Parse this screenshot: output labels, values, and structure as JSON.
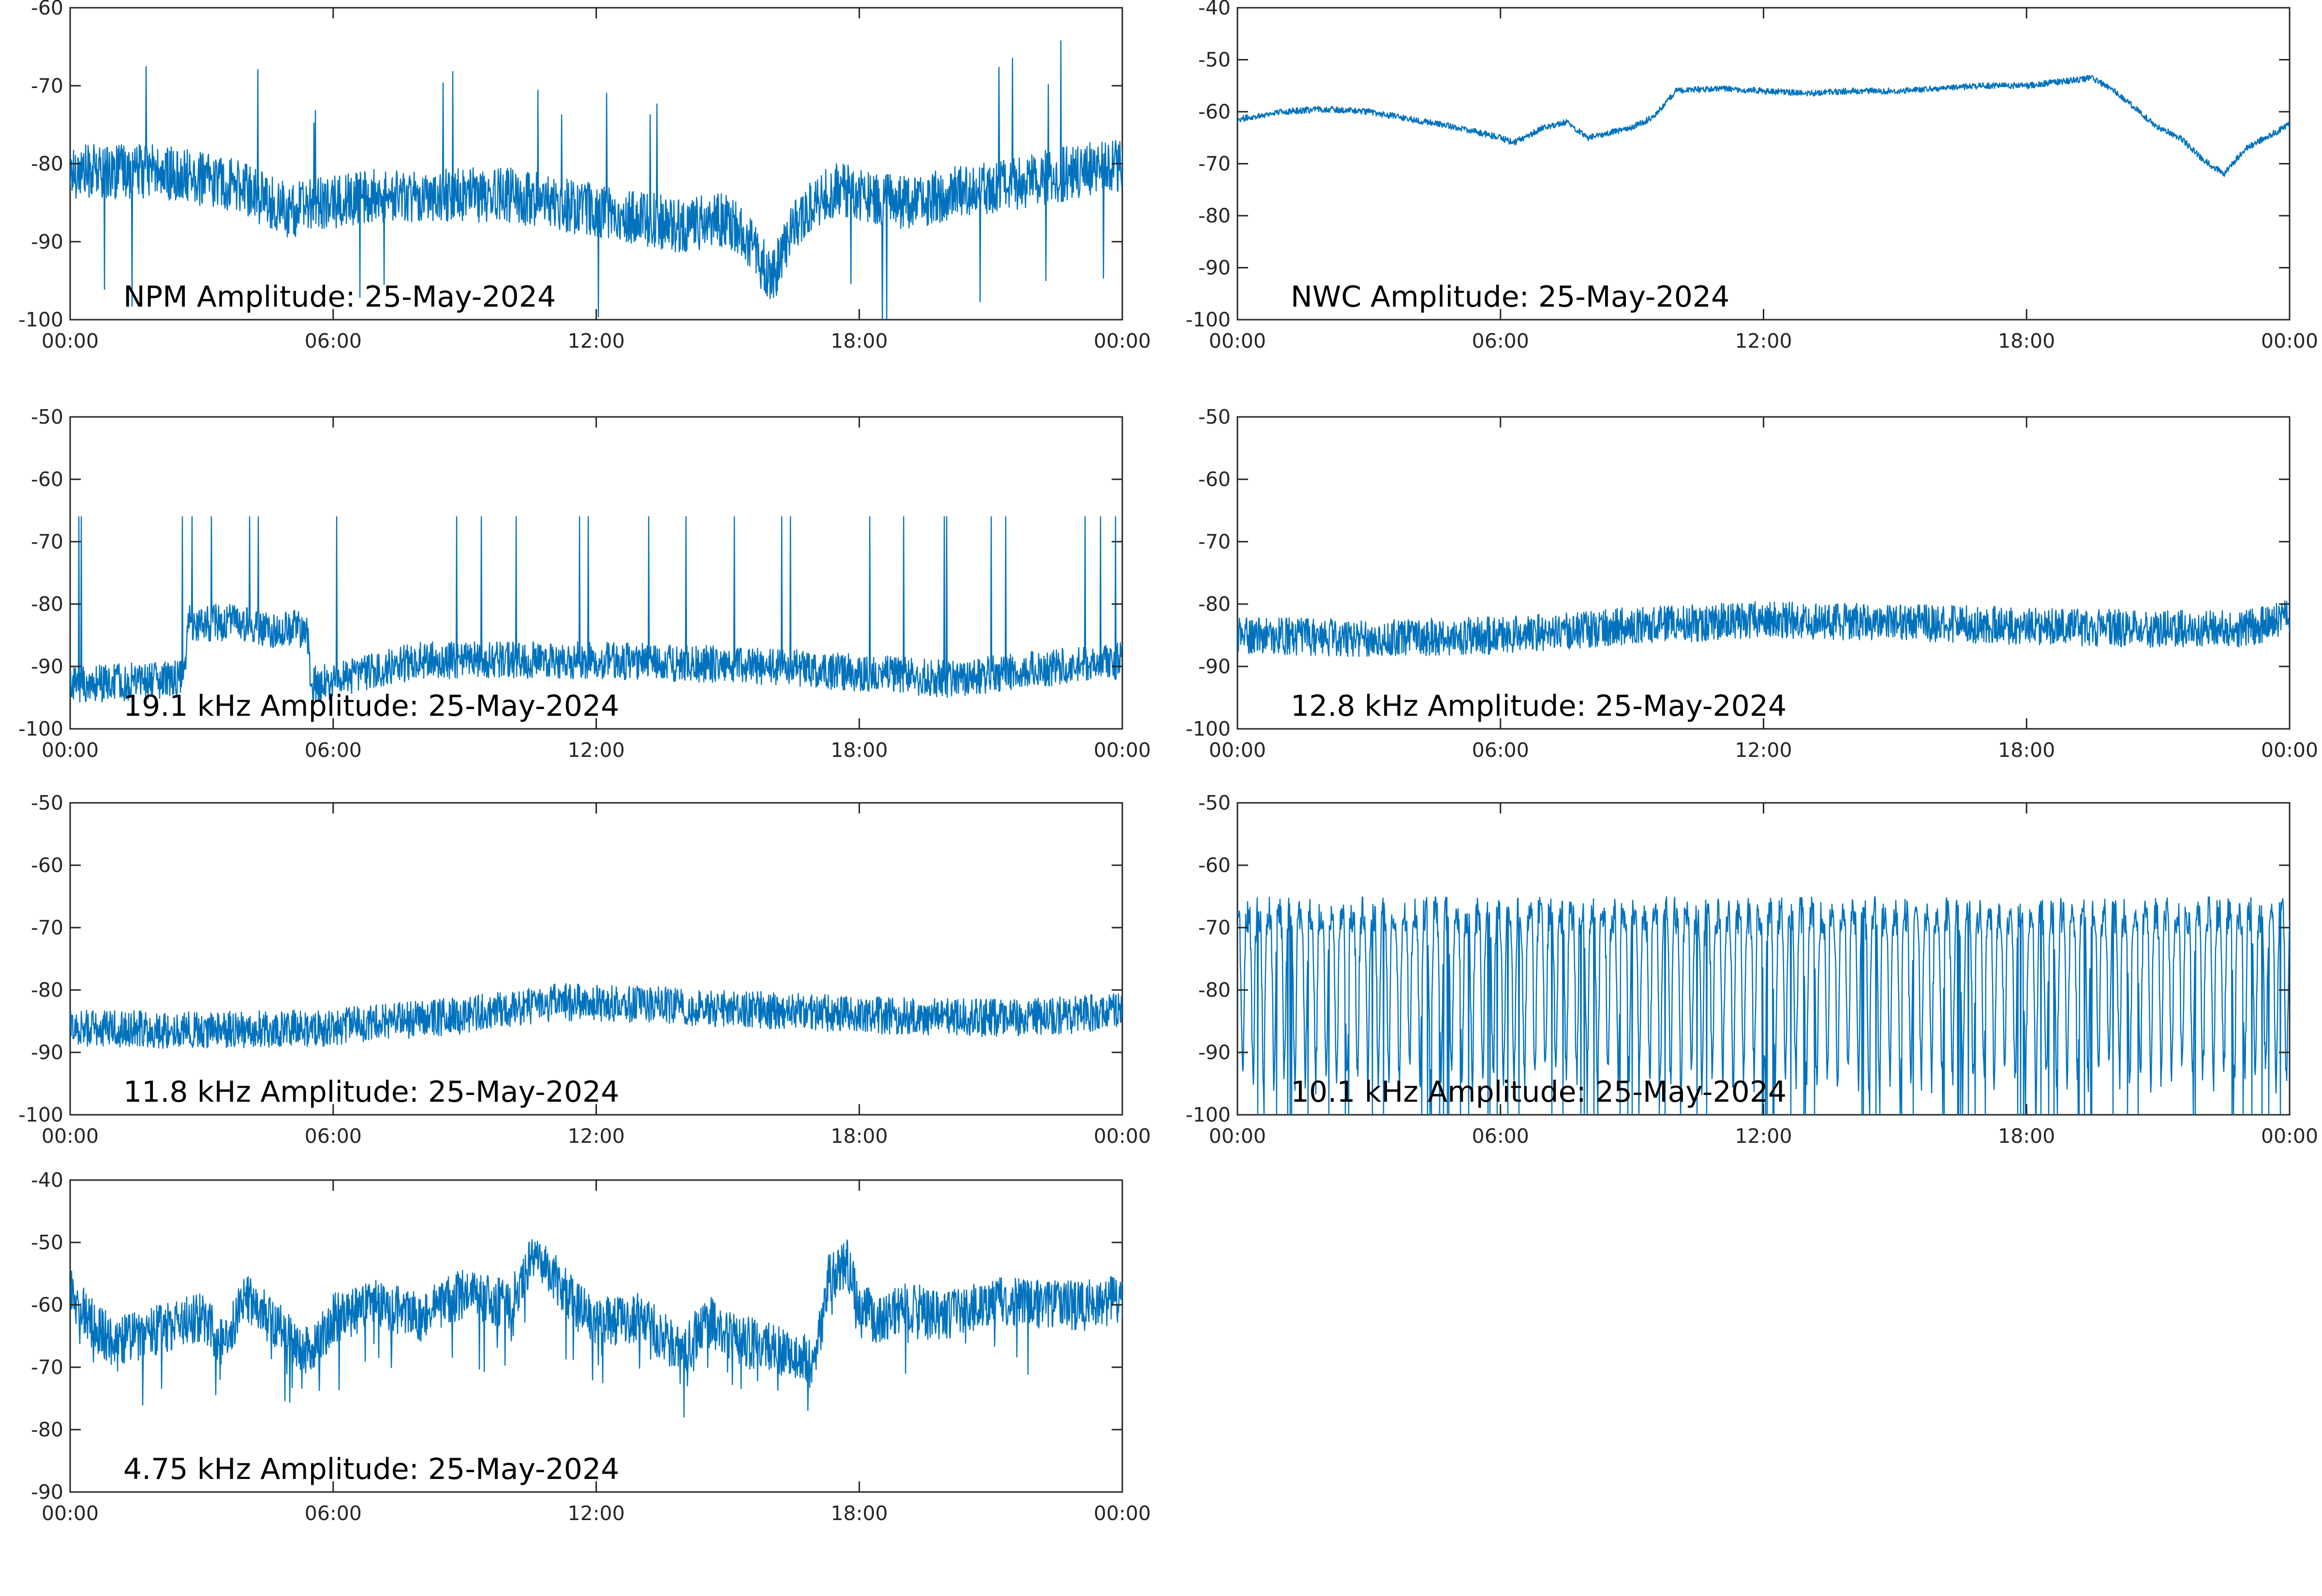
{
  "figure": {
    "trace_color": "#0072bd",
    "frame_color": "#262626",
    "background": "#ffffff"
  },
  "chart_data": [
    {
      "type": "line",
      "title": "NPM Amplitude: 25-May-2024",
      "x_ticks": [
        "00:00",
        "06:00",
        "12:00",
        "18:00",
        "00:00"
      ],
      "xlim": [
        0,
        24
      ],
      "ylim": [
        -100,
        -60
      ],
      "y_ticks": [
        -60,
        -70,
        -80,
        -90,
        -100
      ],
      "grid": false,
      "series": [
        {
          "x": [
            0,
            1,
            2,
            3,
            4,
            4.5,
            5,
            6,
            7,
            8,
            9,
            10,
            11,
            12,
            13,
            14,
            15,
            15.5,
            16,
            16.5,
            17,
            17.5,
            18,
            19,
            20,
            21,
            22,
            23,
            24
          ],
          "y": [
            -81,
            -81,
            -81,
            -82,
            -83,
            -85,
            -86,
            -85,
            -84,
            -84,
            -84,
            -84,
            -85,
            -86,
            -87,
            -88,
            -87,
            -90,
            -95,
            -88,
            -85,
            -83,
            -84,
            -85,
            -84,
            -83,
            -82,
            -81,
            -80
          ],
          "noise": 3.5
        }
      ]
    },
    {
      "type": "line",
      "title": "NWC Amplitude: 25-May-2024",
      "x_ticks": [
        "00:00",
        "06:00",
        "12:00",
        "18:00",
        "00:00"
      ],
      "xlim": [
        0,
        24
      ],
      "ylim": [
        -100,
        -40
      ],
      "y_ticks": [
        -40,
        -50,
        -60,
        -70,
        -80,
        -90,
        -100
      ],
      "grid": false,
      "series": [
        {
          "x": [
            0,
            1,
            2,
            3,
            4,
            5,
            6,
            6.3,
            7,
            7.5,
            8,
            9,
            9.5,
            10,
            11,
            12,
            13,
            14,
            15,
            16,
            17,
            18,
            19,
            19.5,
            20,
            21,
            21.5,
            22,
            22.5,
            23,
            24
          ],
          "y": [
            -61.5,
            -60,
            -59.5,
            -60,
            -61.5,
            -63,
            -65,
            -66,
            -63,
            -62,
            -65,
            -63,
            -61,
            -56,
            -55.5,
            -56,
            -56.5,
            -56,
            -56,
            -55.5,
            -55,
            -55,
            -54,
            -53.5,
            -56,
            -63,
            -65,
            -69,
            -72,
            -67,
            -62.5
          ],
          "noise": 0.6
        }
      ]
    },
    {
      "type": "line",
      "title": "19.1 kHz Amplitude: 25-May-2024",
      "x_ticks": [
        "00:00",
        "06:00",
        "12:00",
        "18:00",
        "00:00"
      ],
      "xlim": [
        0,
        24
      ],
      "ylim": [
        -100,
        -50
      ],
      "y_ticks": [
        -50,
        -60,
        -70,
        -80,
        -90,
        -100
      ],
      "grid": false,
      "series": [
        {
          "x": [
            0,
            2.6,
            2.7,
            4.1,
            4.2,
            5.4,
            5.5,
            8,
            12,
            16,
            20,
            24
          ],
          "y": [
            -93,
            -92,
            -83,
            -83,
            -84,
            -84,
            -93,
            -89,
            -89,
            -90,
            -92,
            -89
          ],
          "noise": 3
        }
      ]
    },
    {
      "type": "line",
      "title": "12.8 kHz Amplitude: 25-May-2024",
      "x_ticks": [
        "00:00",
        "06:00",
        "12:00",
        "18:00",
        "00:00"
      ],
      "xlim": [
        0,
        24
      ],
      "ylim": [
        -100,
        -50
      ],
      "y_ticks": [
        -50,
        -60,
        -70,
        -80,
        -90,
        -100
      ],
      "grid": false,
      "series": [
        {
          "x": [
            0,
            3,
            6,
            9,
            12,
            15,
            18,
            21,
            23,
            24
          ],
          "y": [
            -85,
            -85.5,
            -85,
            -83.5,
            -82.5,
            -83,
            -83.5,
            -84,
            -84,
            -82
          ],
          "noise": 3
        }
      ]
    },
    {
      "type": "line",
      "title": "11.8 kHz Amplitude: 25-May-2024",
      "x_ticks": [
        "00:00",
        "06:00",
        "12:00",
        "18:00",
        "00:00"
      ],
      "xlim": [
        0,
        24
      ],
      "ylim": [
        -100,
        -50
      ],
      "y_ticks": [
        -50,
        -60,
        -70,
        -80,
        -90,
        -100
      ],
      "grid": false,
      "series": [
        {
          "x": [
            0,
            3,
            6,
            9,
            11,
            12,
            15,
            18,
            21,
            23,
            24
          ],
          "y": [
            -86,
            -86.5,
            -86,
            -84,
            -82,
            -82,
            -83,
            -84,
            -84.5,
            -84,
            -83
          ],
          "noise": 3
        }
      ]
    },
    {
      "type": "line",
      "title": "10.1 kHz Amplitude: 25-May-2024",
      "x_ticks": [
        "00:00",
        "06:00",
        "12:00",
        "18:00",
        "00:00"
      ],
      "xlim": [
        0,
        24
      ],
      "ylim": [
        -100,
        -50
      ],
      "y_ticks": [
        -50,
        -60,
        -70,
        -80,
        -90,
        -100
      ],
      "grid": false,
      "series": [
        {
          "x": [
            0,
            6,
            12,
            18,
            24
          ],
          "y": [
            -80,
            -79,
            -80,
            -80,
            -79
          ],
          "noise": 0
        }
      ]
    },
    {
      "type": "line",
      "title": "4.75 kHz Amplitude: 25-May-2024",
      "x_ticks": [
        "00:00",
        "06:00",
        "12:00",
        "18:00",
        "00:00"
      ],
      "xlim": [
        0,
        24
      ],
      "ylim": [
        -90,
        -40
      ],
      "y_ticks": [
        -40,
        -50,
        -60,
        -70,
        -80,
        -90
      ],
      "grid": false,
      "series": [
        {
          "x": [
            0,
            0.5,
            1,
            2,
            3,
            3.5,
            4,
            5,
            5.5,
            6,
            7,
            8,
            9,
            9.5,
            10,
            10.5,
            11,
            11.5,
            12,
            13,
            14,
            14.5,
            15,
            16,
            17,
            17.3,
            17.7,
            18,
            18.5,
            19,
            20,
            21,
            22,
            23,
            24
          ],
          "y": [
            -58,
            -63,
            -66,
            -64,
            -62,
            -66,
            -59,
            -65,
            -68,
            -62,
            -60,
            -62,
            -58,
            -59,
            -60,
            -53,
            -55,
            -60,
            -63,
            -62,
            -68,
            -62,
            -65,
            -67,
            -69,
            -56,
            -53,
            -60,
            -63,
            -60,
            -62,
            -59,
            -60,
            -60,
            -59
          ],
          "noise": 4
        }
      ]
    }
  ]
}
